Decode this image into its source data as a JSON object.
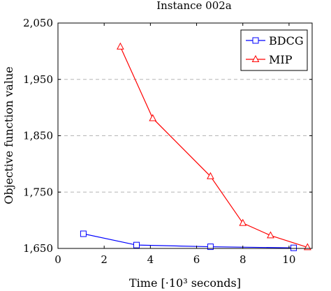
{
  "chart_data": {
    "type": "line",
    "title": "Instance 002a",
    "xlabel": "Time [·10³ seconds]",
    "ylabel": "Objective function value",
    "xlim": [
      0,
      11
    ],
    "ylim": [
      1650,
      2050
    ],
    "x_ticks": [
      0,
      2,
      4,
      6,
      8,
      10
    ],
    "x_tick_labels": [
      "0",
      "2",
      "4",
      "6",
      "8",
      "10"
    ],
    "y_ticks": [
      1650,
      1750,
      1850,
      1950,
      2050
    ],
    "y_tick_labels": [
      "1,650",
      "1,750",
      "1,850",
      "1,950",
      "2,050"
    ],
    "grid": "horizontal dashed",
    "legend_position": "top-right",
    "series": [
      {
        "name": "BDCG",
        "color": "#0000ff",
        "marker": "square",
        "x": [
          1.1,
          3.4,
          6.6,
          10.2
        ],
        "y": [
          1676,
          1656,
          1653,
          1651
        ]
      },
      {
        "name": "MIP",
        "color": "#ff0000",
        "marker": "triangle",
        "x": [
          2.7,
          4.1,
          6.6,
          8.0,
          9.2,
          10.8
        ],
        "y": [
          2008,
          1881,
          1778,
          1695,
          1673,
          1652
        ]
      }
    ]
  }
}
